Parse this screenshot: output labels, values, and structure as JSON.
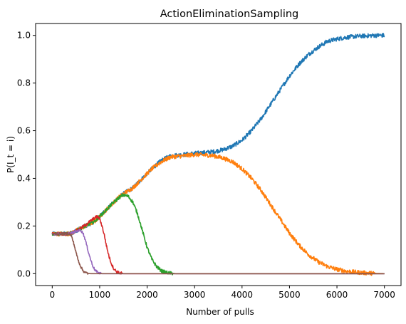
{
  "chart_data": {
    "type": "line",
    "title": "ActionEliminationSampling",
    "xlabel": "Number of pulls",
    "ylabel": "P(I_t = i)",
    "xlim": [
      -350,
      7350
    ],
    "ylim": [
      -0.05,
      1.05
    ],
    "xticks": [
      0,
      1000,
      2000,
      3000,
      4000,
      5000,
      6000,
      7000
    ],
    "yticks": [
      0.0,
      0.2,
      0.4,
      0.6,
      0.8,
      1.0
    ],
    "xtick_labels": [
      "0",
      "1000",
      "2000",
      "3000",
      "4000",
      "5000",
      "6000",
      "7000"
    ],
    "ytick_labels": [
      "0.0",
      "0.2",
      "0.4",
      "0.6",
      "0.8",
      "1.0"
    ],
    "grid": false,
    "legend": "none",
    "series": [
      {
        "color": "#1f77b4",
        "noise": 0.009,
        "x": [
          0,
          300,
          400,
          500,
          600,
          800,
          900,
          1000,
          1100,
          1200,
          1300,
          1400,
          1500,
          1700,
          1900,
          2100,
          2300,
          2500,
          2800,
          3000,
          3200,
          3400,
          3600,
          3800,
          4000,
          4200,
          4400,
          4600,
          4800,
          5000,
          5200,
          5400,
          5600,
          5800,
          6000,
          6200,
          6400,
          6600,
          6800,
          7000
        ],
        "y": [
          0.167,
          0.167,
          0.17,
          0.18,
          0.19,
          0.21,
          0.22,
          0.24,
          0.26,
          0.28,
          0.3,
          0.32,
          0.335,
          0.36,
          0.4,
          0.44,
          0.475,
          0.495,
          0.5,
          0.505,
          0.508,
          0.512,
          0.52,
          0.535,
          0.56,
          0.6,
          0.65,
          0.71,
          0.77,
          0.83,
          0.88,
          0.92,
          0.95,
          0.975,
          0.985,
          0.992,
          0.996,
          0.998,
          1.0,
          1.0
        ]
      },
      {
        "color": "#ff7f0e",
        "noise": 0.009,
        "x": [
          0,
          300,
          400,
          500,
          600,
          800,
          900,
          1000,
          1100,
          1200,
          1300,
          1400,
          1500,
          1700,
          1900,
          2100,
          2300,
          2500,
          2800,
          3000,
          3200,
          3400,
          3600,
          3800,
          4000,
          4200,
          4400,
          4600,
          4800,
          5000,
          5200,
          5400,
          5600,
          5800,
          6000,
          6200,
          6400,
          6600,
          6800,
          7000
        ],
        "y": [
          0.167,
          0.167,
          0.17,
          0.18,
          0.19,
          0.21,
          0.22,
          0.24,
          0.26,
          0.28,
          0.3,
          0.32,
          0.335,
          0.36,
          0.4,
          0.44,
          0.47,
          0.49,
          0.495,
          0.5,
          0.498,
          0.495,
          0.485,
          0.47,
          0.44,
          0.4,
          0.35,
          0.29,
          0.23,
          0.17,
          0.12,
          0.08,
          0.05,
          0.03,
          0.018,
          0.01,
          0.006,
          0.003,
          0.001,
          0.0
        ]
      },
      {
        "color": "#2ca02c",
        "noise": 0.007,
        "x": [
          0,
          300,
          400,
          500,
          600,
          800,
          900,
          1000,
          1100,
          1200,
          1300,
          1400,
          1500,
          1600,
          1700,
          1800,
          1900,
          2000,
          2100,
          2200,
          2300,
          2400,
          2500,
          2600,
          2700,
          3000,
          7000
        ],
        "y": [
          0.167,
          0.167,
          0.17,
          0.18,
          0.19,
          0.21,
          0.22,
          0.24,
          0.26,
          0.28,
          0.3,
          0.318,
          0.33,
          0.325,
          0.3,
          0.25,
          0.18,
          0.11,
          0.06,
          0.03,
          0.012,
          0.005,
          0.002,
          0.0,
          0.0,
          0.0,
          0.0
        ]
      },
      {
        "color": "#d62728",
        "noise": 0.006,
        "x": [
          0,
          300,
          400,
          500,
          600,
          700,
          800,
          900,
          950,
          1000,
          1050,
          1100,
          1150,
          1200,
          1250,
          1300,
          1350,
          1400,
          1500,
          1600,
          7000
        ],
        "y": [
          0.167,
          0.167,
          0.17,
          0.18,
          0.19,
          0.205,
          0.22,
          0.235,
          0.24,
          0.23,
          0.2,
          0.16,
          0.11,
          0.07,
          0.04,
          0.02,
          0.01,
          0.004,
          0.0,
          0.0,
          0.0
        ]
      },
      {
        "color": "#9467bd",
        "noise": 0.005,
        "x": [
          0,
          300,
          400,
          500,
          550,
          600,
          650,
          700,
          750,
          800,
          850,
          900,
          950,
          1000,
          1050,
          1100,
          1200,
          7000
        ],
        "y": [
          0.167,
          0.167,
          0.17,
          0.177,
          0.18,
          0.182,
          0.17,
          0.14,
          0.1,
          0.065,
          0.035,
          0.015,
          0.006,
          0.002,
          0.0,
          0.0,
          0.0,
          0.0
        ]
      },
      {
        "color": "#8c564b",
        "noise": 0.005,
        "x": [
          0,
          300,
          350,
          400,
          450,
          500,
          550,
          600,
          650,
          700,
          750,
          800,
          900,
          7000
        ],
        "y": [
          0.167,
          0.167,
          0.168,
          0.16,
          0.13,
          0.09,
          0.055,
          0.03,
          0.012,
          0.004,
          0.001,
          0.0,
          0.0,
          0.0
        ]
      }
    ]
  }
}
